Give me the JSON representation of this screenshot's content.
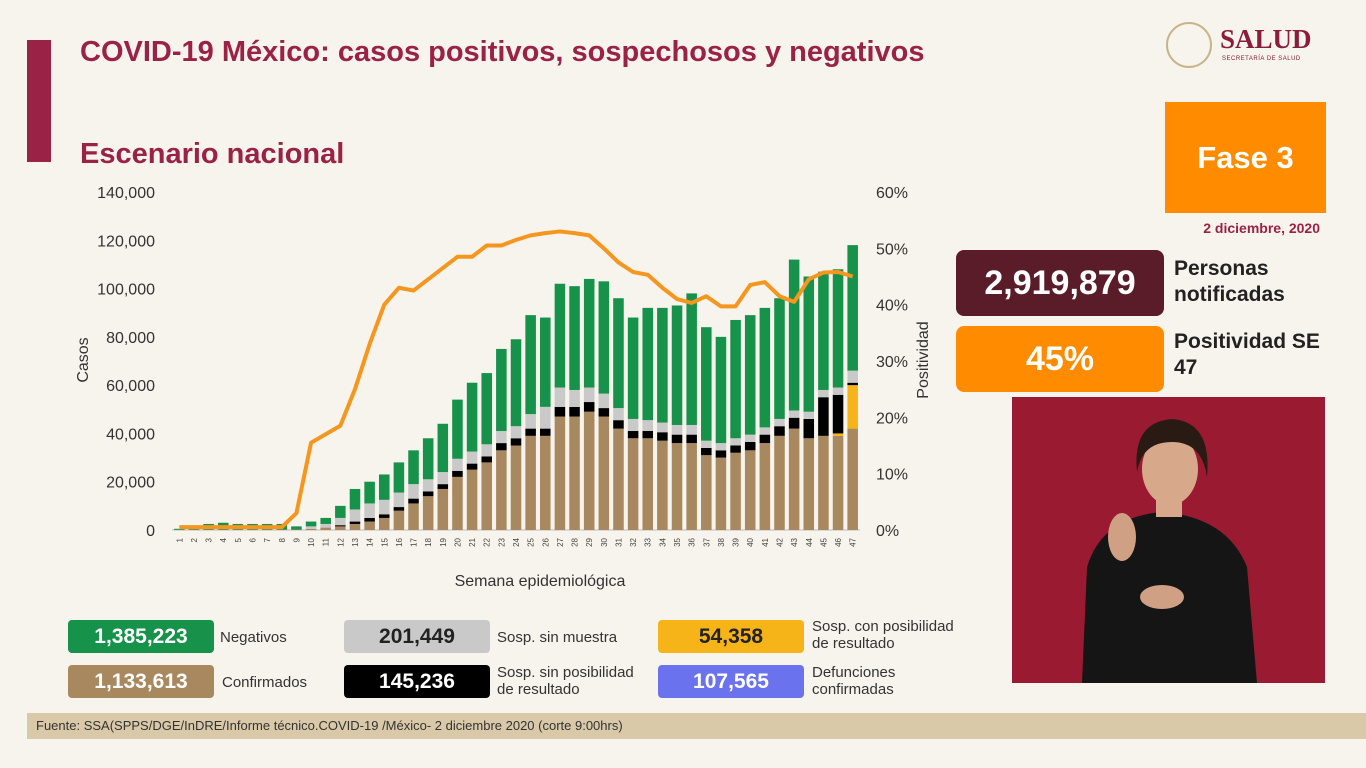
{
  "header": {
    "brand": "SALUD",
    "brand_sub": "SECRETARÍA DE SALUD"
  },
  "chart_data": {
    "type": "stacked-bar-line",
    "title": "COVID-19 México: casos positivos, sospechosos y negativos",
    "subtitle": "Escenario nacional",
    "x_label": "Semana epidemiológica",
    "y_label": "Casos",
    "y2_label": "Positividad",
    "categories": [
      "1",
      "2",
      "3",
      "4",
      "5",
      "6",
      "7",
      "8",
      "9",
      "10",
      "11",
      "12",
      "13",
      "14",
      "15",
      "16",
      "17",
      "18",
      "19",
      "20",
      "21",
      "22",
      "23",
      "24",
      "25",
      "26",
      "27",
      "28",
      "29",
      "30",
      "31",
      "32",
      "33",
      "34",
      "35",
      "36",
      "37",
      "38",
      "39",
      "40",
      "41",
      "42",
      "43",
      "44",
      "45",
      "46",
      "47"
    ],
    "ylim": [
      0,
      140000
    ],
    "yticks": [
      0,
      {
        "value": 20000,
        "label": "20,000"
      },
      {
        "value": 40000,
        "label": "40,000"
      },
      {
        "value": 60000,
        "label": "60,000"
      },
      {
        "value": 80000,
        "label": "80,000"
      },
      {
        "value": 100000,
        "label": "100,000"
      },
      {
        "value": 120000,
        "label": "120,000"
      },
      {
        "value": 140000,
        "label": "140,000"
      }
    ],
    "y2lim": [
      0,
      60
    ],
    "y2ticks": [
      {
        "value": 0,
        "label": "0%"
      },
      {
        "value": 10,
        "label": "10%"
      },
      {
        "value": 20,
        "label": "20%"
      },
      {
        "value": 30,
        "label": "30%"
      },
      {
        "value": 40,
        "label": "40%"
      },
      {
        "value": 50,
        "label": "50%"
      },
      {
        "value": 60,
        "label": "60%"
      }
    ],
    "series": [
      {
        "name": "Confirmados",
        "color": "#a8885e",
        "total": "1,133,613",
        "values": [
          100,
          200,
          200,
          200,
          200,
          200,
          200,
          200,
          200,
          500,
          1000,
          1500,
          2500,
          3500,
          5000,
          8000,
          11000,
          14000,
          17000,
          22000,
          25000,
          28000,
          33000,
          35000,
          39000,
          39000,
          47000,
          47000,
          49000,
          47000,
          42000,
          38000,
          38000,
          37000,
          36000,
          36000,
          31000,
          30000,
          32000,
          33000,
          36000,
          39000,
          42000,
          38000,
          39000,
          39000,
          42000
        ]
      },
      {
        "name": "Sosp. con posibilidad de resultado",
        "color": "#f7b418",
        "total": "54,358",
        "values": [
          0,
          0,
          0,
          0,
          0,
          0,
          0,
          0,
          0,
          0,
          0,
          0,
          0,
          0,
          0,
          0,
          0,
          0,
          0,
          0,
          0,
          0,
          0,
          0,
          0,
          0,
          0,
          0,
          0,
          0,
          0,
          0,
          0,
          0,
          0,
          0,
          0,
          0,
          0,
          0,
          0,
          0,
          0,
          0,
          0,
          1000,
          18000
        ]
      },
      {
        "name": "Sosp. sin posibilidad de resultado",
        "color": "#000000",
        "total": "145,236",
        "values": [
          0,
          0,
          0,
          0,
          0,
          0,
          0,
          0,
          0,
          0,
          0,
          500,
          1000,
          1500,
          1500,
          1500,
          2000,
          2000,
          2000,
          2500,
          2500,
          2500,
          3000,
          3000,
          3000,
          3000,
          4000,
          4000,
          4000,
          3500,
          3500,
          3000,
          3000,
          3500,
          3500,
          3500,
          3000,
          3000,
          3000,
          3500,
          3500,
          4000,
          4500,
          8000,
          16000,
          16000,
          1000
        ]
      },
      {
        "name": "Sosp. sin muestra",
        "color": "#c9c9c9",
        "total": "201,449",
        "values": [
          0,
          0,
          0,
          0,
          0,
          0,
          0,
          0,
          0,
          1000,
          1500,
          3000,
          5000,
          6000,
          6000,
          6000,
          6000,
          5000,
          5000,
          5000,
          5000,
          5000,
          5000,
          5000,
          6000,
          9000,
          8000,
          7000,
          6000,
          6000,
          5000,
          5000,
          4500,
          4000,
          4000,
          4000,
          3000,
          3000,
          3000,
          3000,
          3000,
          3000,
          3000,
          3000,
          3000,
          3000,
          5000
        ]
      },
      {
        "name": "Negativos",
        "color": "#16924a",
        "total": "1,385,223",
        "values": [
          400,
          1300,
          2300,
          2800,
          2300,
          2300,
          2300,
          2300,
          1300,
          2000,
          2500,
          5000,
          8500,
          9000,
          10500,
          12500,
          14000,
          17000,
          20000,
          24500,
          28500,
          29500,
          34000,
          36000,
          41000,
          37000,
          43000,
          43000,
          45000,
          46500,
          45500,
          42000,
          46500,
          47500,
          49500,
          54500,
          47000,
          44000,
          49000,
          49500,
          49500,
          50000,
          62500,
          56000,
          49000,
          49000,
          52000
        ]
      },
      {
        "color": "#f5961e",
        "axis": "y2",
        "values": [
          0.5,
          0.5,
          0.5,
          0.5,
          0.5,
          0.5,
          0.5,
          0.5,
          3,
          15.5,
          17,
          18.5,
          25,
          33,
          40,
          43,
          42.5,
          44.5,
          46.5,
          48.5,
          48.5,
          50.5,
          50.5,
          51.5,
          52.3,
          52.7,
          53,
          52.7,
          52.3,
          50,
          47.5,
          45.8,
          45.3,
          43,
          41,
          40.3,
          41.5,
          39.7,
          39.7,
          43.5,
          44,
          41.5,
          40.5,
          44.5,
          45.7,
          45.8,
          45
        ]
      }
    ]
  },
  "deaths": {
    "label": "Defunciones confirmadas",
    "value": "107,565",
    "color": "#6a72ee"
  },
  "sidebar": {
    "phase": "Fase 3",
    "date": "2 diciembre, 2020",
    "notified_value": "2,919,879",
    "notified_label": "Personas notificadas",
    "positivity_value": "45%",
    "positivity_label": "Positividad SE 47"
  },
  "footer": {
    "source": "Fuente: SSA(SPPS/DGE/InDRE/Informe técnico.COVID-19 /México- 2 diciembre 2020 (corte 9:00hrs)"
  }
}
